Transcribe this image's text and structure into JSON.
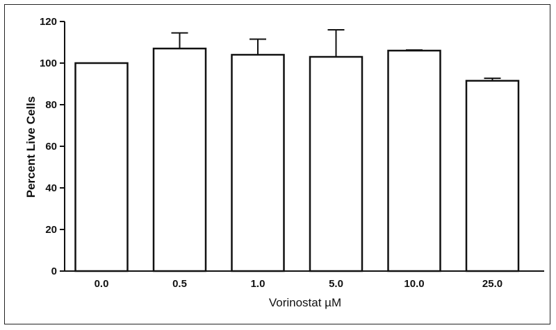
{
  "chart_data": {
    "type": "bar",
    "title": "",
    "xlabel": "Vorinostat µM",
    "ylabel": "Percent Live Cells",
    "ylim": [
      0,
      120
    ],
    "yticks": [
      0,
      20,
      40,
      60,
      80,
      100,
      120
    ],
    "grid": false,
    "categories": [
      "0.0",
      "0.5",
      "1.0",
      "5.0",
      "10.0",
      "25.0"
    ],
    "values": [
      100,
      107,
      104,
      103,
      106,
      91.5
    ],
    "error_upper": [
      0,
      7.5,
      7.5,
      13,
      0.3,
      1.2
    ],
    "colors": {
      "bar_fill": "#ffffff",
      "bar_stroke": "#111111",
      "axis": "#111111"
    }
  }
}
